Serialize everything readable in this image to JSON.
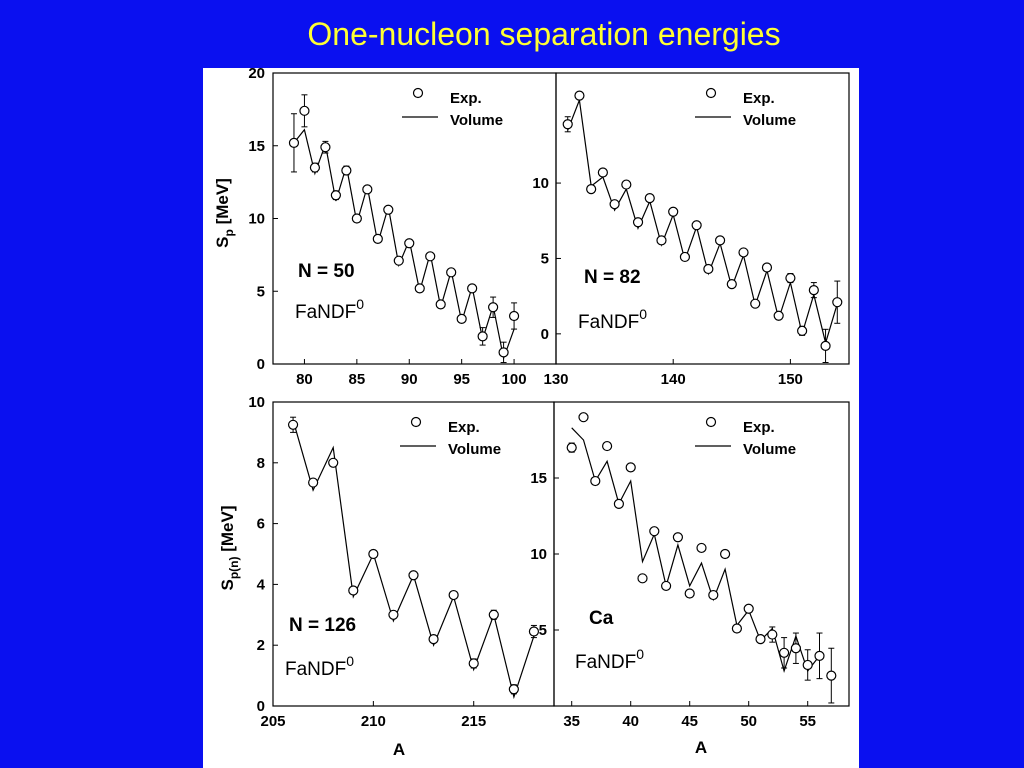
{
  "slide": {
    "title": "One-nucleon separation energies"
  },
  "figure": {
    "ylabel_top": {
      "main": "S",
      "sub": "p",
      "unit": " [MeV]"
    },
    "ylabel_bottom": {
      "main": "S",
      "sub": "p(n)",
      "unit": " [MeV]"
    },
    "xlabel": "A"
  },
  "chart_data": [
    {
      "id": "n50",
      "type": "line",
      "label": "N = 50",
      "model": "FaNDF",
      "model_sup": "0",
      "legend": {
        "exp": "Exp.",
        "model": "Volume",
        "placement": "top-right"
      },
      "xlim": [
        77,
        104
      ],
      "ylim": [
        0,
        20
      ],
      "xticks": [
        80,
        85,
        90,
        95,
        100
      ],
      "yticks": [
        0,
        5,
        10,
        15,
        20
      ],
      "exp": [
        {
          "x": 79,
          "y": 15.2,
          "err": 2.0
        },
        {
          "x": 80,
          "y": 17.4,
          "err": 1.1
        },
        {
          "x": 81,
          "y": 13.5,
          "err": 0.3
        },
        {
          "x": 82,
          "y": 14.9,
          "err": 0.4
        },
        {
          "x": 83,
          "y": 11.6,
          "err": 0.3
        },
        {
          "x": 84,
          "y": 13.3,
          "err": 0.3
        },
        {
          "x": 85,
          "y": 10.0,
          "err": 0.2
        },
        {
          "x": 86,
          "y": 12.0,
          "err": 0.2
        },
        {
          "x": 87,
          "y": 8.6,
          "err": 0.2
        },
        {
          "x": 88,
          "y": 10.6,
          "err": 0.2
        },
        {
          "x": 89,
          "y": 7.1,
          "err": 0.2
        },
        {
          "x": 90,
          "y": 8.3,
          "err": 0.2
        },
        {
          "x": 91,
          "y": 5.2,
          "err": 0.2
        },
        {
          "x": 92,
          "y": 7.4,
          "err": 0.2
        },
        {
          "x": 93,
          "y": 4.1,
          "err": 0.2
        },
        {
          "x": 94,
          "y": 6.3,
          "err": 0.2
        },
        {
          "x": 95,
          "y": 3.1,
          "err": 0.2
        },
        {
          "x": 96,
          "y": 5.2,
          "err": 0.2
        },
        {
          "x": 97,
          "y": 1.9,
          "err": 0.6
        },
        {
          "x": 98,
          "y": 3.9,
          "err": 0.7
        },
        {
          "x": 99,
          "y": 0.8,
          "err": 0.7
        },
        {
          "x": 100,
          "y": 3.3,
          "err": 0.9
        }
      ],
      "model_curve": [
        {
          "x": 79,
          "y": 15.2
        },
        {
          "x": 80,
          "y": 16.1
        },
        {
          "x": 81,
          "y": 13.1
        },
        {
          "x": 82,
          "y": 15.1
        },
        {
          "x": 83,
          "y": 11.2
        },
        {
          "x": 84,
          "y": 13.6
        },
        {
          "x": 85,
          "y": 9.7
        },
        {
          "x": 86,
          "y": 12.2
        },
        {
          "x": 87,
          "y": 8.3
        },
        {
          "x": 88,
          "y": 10.8
        },
        {
          "x": 89,
          "y": 6.8
        },
        {
          "x": 90,
          "y": 8.5
        },
        {
          "x": 91,
          "y": 5.0
        },
        {
          "x": 92,
          "y": 7.6
        },
        {
          "x": 93,
          "y": 3.9
        },
        {
          "x": 94,
          "y": 6.4
        },
        {
          "x": 95,
          "y": 2.9
        },
        {
          "x": 96,
          "y": 5.3
        },
        {
          "x": 97,
          "y": 1.7
        },
        {
          "x": 98,
          "y": 4.0
        },
        {
          "x": 99,
          "y": 0.4
        },
        {
          "x": 100,
          "y": 2.4
        }
      ]
    },
    {
      "id": "n82",
      "type": "line",
      "label": "N = 82",
      "model": "FaNDF",
      "model_sup": "0",
      "legend": {
        "exp": "Exp.",
        "model": "Volume",
        "placement": "top-right"
      },
      "xlim": [
        130,
        155
      ],
      "ylim": [
        -2,
        17.3
      ],
      "xticks": [
        130,
        140,
        150
      ],
      "yticks": [
        0,
        5,
        10
      ],
      "exp": [
        {
          "x": 131,
          "y": 13.9,
          "err": 0.5
        },
        {
          "x": 132,
          "y": 15.8,
          "err": 0.2
        },
        {
          "x": 133,
          "y": 9.6,
          "err": 0.2
        },
        {
          "x": 134,
          "y": 10.7,
          "err": 0.2
        },
        {
          "x": 135,
          "y": 8.6,
          "err": 0.2
        },
        {
          "x": 136,
          "y": 9.9,
          "err": 0.2
        },
        {
          "x": 137,
          "y": 7.4,
          "err": 0.2
        },
        {
          "x": 138,
          "y": 9.0,
          "err": 0.2
        },
        {
          "x": 139,
          "y": 6.2,
          "err": 0.2
        },
        {
          "x": 140,
          "y": 8.1,
          "err": 0.2
        },
        {
          "x": 141,
          "y": 5.1,
          "err": 0.2
        },
        {
          "x": 142,
          "y": 7.2,
          "err": 0.2
        },
        {
          "x": 143,
          "y": 4.3,
          "err": 0.2
        },
        {
          "x": 144,
          "y": 6.2,
          "err": 0.2
        },
        {
          "x": 145,
          "y": 3.3,
          "err": 0.2
        },
        {
          "x": 146,
          "y": 5.4,
          "err": 0.2
        },
        {
          "x": 147,
          "y": 2.0,
          "err": 0.2
        },
        {
          "x": 148,
          "y": 4.4,
          "err": 0.2
        },
        {
          "x": 149,
          "y": 1.2,
          "err": 0.2
        },
        {
          "x": 150,
          "y": 3.7,
          "err": 0.3
        },
        {
          "x": 151,
          "y": 0.2,
          "err": 0.3
        },
        {
          "x": 152,
          "y": 2.9,
          "err": 0.5
        },
        {
          "x": 153,
          "y": -0.8,
          "err": 1.1
        },
        {
          "x": 154,
          "y": 2.1,
          "err": 1.4
        }
      ],
      "model_curve": [
        {
          "x": 131,
          "y": 13.5
        },
        {
          "x": 132,
          "y": 15.5
        },
        {
          "x": 133,
          "y": 9.8
        },
        {
          "x": 134,
          "y": 10.4
        },
        {
          "x": 135,
          "y": 8.2
        },
        {
          "x": 136,
          "y": 9.6
        },
        {
          "x": 137,
          "y": 7.0
        },
        {
          "x": 138,
          "y": 8.8
        },
        {
          "x": 139,
          "y": 5.9
        },
        {
          "x": 140,
          "y": 7.9
        },
        {
          "x": 141,
          "y": 4.9
        },
        {
          "x": 142,
          "y": 7.1
        },
        {
          "x": 143,
          "y": 4.0
        },
        {
          "x": 144,
          "y": 6.0
        },
        {
          "x": 145,
          "y": 3.1
        },
        {
          "x": 146,
          "y": 5.2
        },
        {
          "x": 147,
          "y": 1.9
        },
        {
          "x": 148,
          "y": 4.2
        },
        {
          "x": 149,
          "y": 1.0
        },
        {
          "x": 150,
          "y": 3.4
        },
        {
          "x": 151,
          "y": 0.0
        },
        {
          "x": 152,
          "y": 2.6
        },
        {
          "x": 153,
          "y": -0.6
        },
        {
          "x": 154,
          "y": 2.0
        }
      ]
    },
    {
      "id": "n126",
      "type": "line",
      "label": "N = 126",
      "model": "FaNDF",
      "model_sup": "0",
      "legend": {
        "exp": "Exp.",
        "model": "Volume",
        "placement": "top-right"
      },
      "xlim": [
        205,
        219
      ],
      "ylim": [
        0,
        10
      ],
      "xticks": [
        205,
        210,
        215
      ],
      "yticks": [
        0,
        2,
        4,
        6,
        8,
        10
      ],
      "exp": [
        {
          "x": 206,
          "y": 9.25,
          "err": 0.25
        },
        {
          "x": 207,
          "y": 7.35,
          "err": 0.1
        },
        {
          "x": 208,
          "y": 8.0,
          "err": 0.1
        },
        {
          "x": 209,
          "y": 3.8,
          "err": 0.1
        },
        {
          "x": 210,
          "y": 5.0,
          "err": 0.1
        },
        {
          "x": 211,
          "y": 3.0,
          "err": 0.1
        },
        {
          "x": 212,
          "y": 4.3,
          "err": 0.1
        },
        {
          "x": 213,
          "y": 2.2,
          "err": 0.1
        },
        {
          "x": 214,
          "y": 3.65,
          "err": 0.1
        },
        {
          "x": 215,
          "y": 1.4,
          "err": 0.15
        },
        {
          "x": 216,
          "y": 3.0,
          "err": 0.15
        },
        {
          "x": 217,
          "y": 0.55,
          "err": 0.15
        },
        {
          "x": 218,
          "y": 2.45,
          "err": 0.2
        }
      ],
      "model_curve": [
        {
          "x": 206,
          "y": 9.4
        },
        {
          "x": 207,
          "y": 7.1
        },
        {
          "x": 208,
          "y": 8.5
        },
        {
          "x": 209,
          "y": 3.6
        },
        {
          "x": 210,
          "y": 5.0
        },
        {
          "x": 211,
          "y": 2.8
        },
        {
          "x": 212,
          "y": 4.3
        },
        {
          "x": 213,
          "y": 2.0
        },
        {
          "x": 214,
          "y": 3.6
        },
        {
          "x": 215,
          "y": 1.2
        },
        {
          "x": 216,
          "y": 3.0
        },
        {
          "x": 217,
          "y": 0.3
        },
        {
          "x": 218,
          "y": 2.3
        }
      ]
    },
    {
      "id": "ca",
      "type": "line",
      "label": "Ca",
      "model": "FaNDF",
      "model_sup": "0",
      "legend": {
        "exp": "Exp.",
        "model": "Volume",
        "placement": "top-right"
      },
      "xlim": [
        33.5,
        58.5
      ],
      "ylim": [
        0,
        20
      ],
      "xticks": [
        35,
        40,
        45,
        50,
        55
      ],
      "yticks": [
        5,
        10,
        15
      ],
      "exp": [
        {
          "x": 35,
          "y": 17.0,
          "err": 0.3
        },
        {
          "x": 36,
          "y": 19.0,
          "err": 0.2
        },
        {
          "x": 37,
          "y": 14.8,
          "err": 0.1
        },
        {
          "x": 38,
          "y": 17.1,
          "err": 0.1
        },
        {
          "x": 39,
          "y": 13.3,
          "err": 0.1
        },
        {
          "x": 40,
          "y": 15.7,
          "err": 0.1
        },
        {
          "x": 41,
          "y": 8.4,
          "err": 0.1
        },
        {
          "x": 42,
          "y": 11.5,
          "err": 0.1
        },
        {
          "x": 43,
          "y": 7.9,
          "err": 0.1
        },
        {
          "x": 44,
          "y": 11.1,
          "err": 0.1
        },
        {
          "x": 45,
          "y": 7.4,
          "err": 0.1
        },
        {
          "x": 46,
          "y": 10.4,
          "err": 0.1
        },
        {
          "x": 47,
          "y": 7.3,
          "err": 0.1
        },
        {
          "x": 48,
          "y": 10.0,
          "err": 0.1
        },
        {
          "x": 49,
          "y": 5.1,
          "err": 0.1
        },
        {
          "x": 50,
          "y": 6.4,
          "err": 0.1
        },
        {
          "x": 51,
          "y": 4.4,
          "err": 0.2
        },
        {
          "x": 52,
          "y": 4.7,
          "err": 0.5
        },
        {
          "x": 53,
          "y": 3.5,
          "err": 1.0
        },
        {
          "x": 54,
          "y": 3.8,
          "err": 1.0
        },
        {
          "x": 55,
          "y": 2.7,
          "err": 1.0
        },
        {
          "x": 56,
          "y": 3.3,
          "err": 1.5
        },
        {
          "x": 57,
          "y": 2.0,
          "err": 1.8
        }
      ],
      "model_curve": [
        {
          "x": 35,
          "y": 18.3
        },
        {
          "x": 36,
          "y": 17.5
        },
        {
          "x": 37,
          "y": 14.8
        },
        {
          "x": 38,
          "y": 16.1
        },
        {
          "x": 39,
          "y": 13.3
        },
        {
          "x": 40,
          "y": 14.8
        },
        {
          "x": 41,
          "y": 9.5
        },
        {
          "x": 42,
          "y": 11.3
        },
        {
          "x": 43,
          "y": 7.9
        },
        {
          "x": 44,
          "y": 10.6
        },
        {
          "x": 45,
          "y": 7.9
        },
        {
          "x": 46,
          "y": 9.4
        },
        {
          "x": 47,
          "y": 7.0
        },
        {
          "x": 48,
          "y": 9.0
        },
        {
          "x": 49,
          "y": 5.3
        },
        {
          "x": 50,
          "y": 6.3
        },
        {
          "x": 51,
          "y": 4.3
        },
        {
          "x": 52,
          "y": 5.1
        },
        {
          "x": 53,
          "y": 2.3
        },
        {
          "x": 54,
          "y": 4.6
        },
        {
          "x": 55,
          "y": 2.3
        },
        {
          "x": 56,
          "y": 3.3
        }
      ]
    }
  ]
}
